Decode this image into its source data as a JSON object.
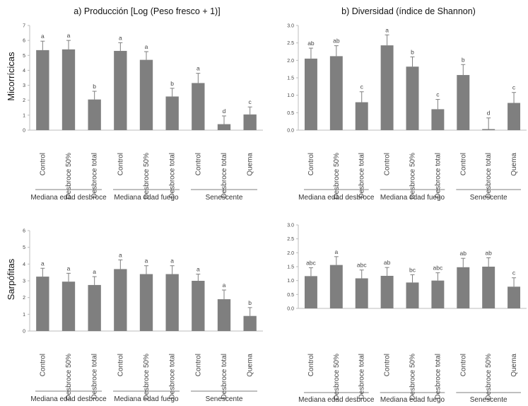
{
  "titles": {
    "a": "a) Producción [Log (Peso fresco + 1)]",
    "b": "b) Diversidad (índice de Shannon)"
  },
  "row_labels": [
    "Micorrícicas",
    "Sarpófitas"
  ],
  "chart_data": [
    {
      "type": "bar",
      "panel": "a) Producción [Log (Peso fresco + 1)]",
      "row": "Micorrícicas",
      "ylim": [
        0,
        7
      ],
      "yticks": [
        "0",
        "1",
        "2",
        "3",
        "4",
        "5",
        "6",
        "7"
      ],
      "groups": [
        {
          "name": "Mediana edad desbroce",
          "categories": [
            "Control",
            "Desbroce 50%",
            "Desbroce total"
          ],
          "values": [
            5.35,
            5.4,
            2.05
          ],
          "errors": [
            0.6,
            0.6,
            0.55
          ],
          "letters": [
            "a",
            "a",
            "b"
          ]
        },
        {
          "name": "Mediana edad fuego",
          "categories": [
            "Control",
            "Desbroce 50%",
            "Desbroce total"
          ],
          "values": [
            5.3,
            4.7,
            2.25
          ],
          "errors": [
            0.55,
            0.55,
            0.55
          ],
          "letters": [
            "a",
            "a",
            "b"
          ]
        },
        {
          "name": "Senescente",
          "categories": [
            "Control",
            "Desbroce total",
            "Quema"
          ],
          "values": [
            3.15,
            0.4,
            1.05
          ],
          "errors": [
            0.65,
            0.55,
            0.5
          ],
          "letters": [
            "a",
            "d",
            "c"
          ]
        }
      ]
    },
    {
      "type": "bar",
      "panel": "b) Diversidad (índice de Shannon)",
      "row": "Micorrícicas",
      "ylim": [
        0,
        3
      ],
      "yticks": [
        "0.0",
        "0.5",
        "1.0",
        "1.5",
        "2.0",
        "2.5",
        "3.0"
      ],
      "groups": [
        {
          "name": "Mediana edad desbroce",
          "categories": [
            "Control",
            "Desbroce 50%",
            "Desbroce total"
          ],
          "values": [
            2.05,
            2.12,
            0.8
          ],
          "errors": [
            0.3,
            0.3,
            0.3
          ],
          "letters": [
            "ab",
            "ab",
            "c"
          ]
        },
        {
          "name": "Mediana edad fuego",
          "categories": [
            "Control",
            "Desbroce 50%",
            "Desbroce total"
          ],
          "values": [
            2.43,
            1.82,
            0.6
          ],
          "errors": [
            0.3,
            0.28,
            0.28
          ],
          "letters": [
            "a",
            "b",
            "c"
          ]
        },
        {
          "name": "Senescente",
          "categories": [
            "Control",
            "Desbroce total",
            "Quema"
          ],
          "values": [
            1.58,
            0.03,
            0.78
          ],
          "errors": [
            0.3,
            0.32,
            0.3
          ],
          "letters": [
            "b",
            "d",
            "c"
          ]
        }
      ]
    },
    {
      "type": "bar",
      "panel": "a) Producción [Log (Peso fresco + 1)]",
      "row": "Sarpófitas",
      "ylim": [
        0,
        6
      ],
      "yticks": [
        "0",
        "1",
        "2",
        "3",
        "4",
        "5",
        "6"
      ],
      "groups": [
        {
          "name": "Mediana edad desbroce",
          "categories": [
            "Control",
            "Desbroce 50%",
            "Desbroce total"
          ],
          "values": [
            3.25,
            2.95,
            2.75
          ],
          "errors": [
            0.5,
            0.5,
            0.5
          ],
          "letters": [
            "a",
            "a",
            "a"
          ]
        },
        {
          "name": "Mediana edad fuego",
          "categories": [
            "Control",
            "Desbroce 50%",
            "Desbroce total"
          ],
          "values": [
            3.7,
            3.4,
            3.4
          ],
          "errors": [
            0.55,
            0.5,
            0.5
          ],
          "letters": [
            "a",
            "a",
            "a"
          ]
        },
        {
          "name": "Senescente",
          "categories": [
            "Control",
            "Desbroce total",
            "Quema"
          ],
          "values": [
            3.0,
            1.9,
            0.9
          ],
          "errors": [
            0.4,
            0.55,
            0.5
          ],
          "letters": [
            "a",
            "a",
            "b"
          ]
        }
      ]
    },
    {
      "type": "bar",
      "panel": "b) Diversidad (índice de Shannon)",
      "row": "Sarpófitas",
      "ylim": [
        0,
        3
      ],
      "yticks": [
        "0.0",
        "0.5",
        "1.0",
        "1.5",
        "2.0",
        "2.5",
        "3.0"
      ],
      "groups": [
        {
          "name": "Mediana edad desbroce",
          "categories": [
            "Control",
            "Desbroce 50%",
            "Desbroce total"
          ],
          "values": [
            1.16,
            1.56,
            1.08
          ],
          "errors": [
            0.3,
            0.3,
            0.3
          ],
          "letters": [
            "abc",
            "a",
            "abc"
          ]
        },
        {
          "name": "Mediana edad fuego",
          "categories": [
            "Control",
            "Desbroce 50%",
            "Desbroce total"
          ],
          "values": [
            1.17,
            0.93,
            1.0
          ],
          "errors": [
            0.3,
            0.28,
            0.28
          ],
          "letters": [
            "ab",
            "bc",
            "abc"
          ]
        },
        {
          "name": "Senescente",
          "categories": [
            "Control",
            "Desbroce 50%",
            "Quema"
          ],
          "values": [
            1.48,
            1.5,
            0.78
          ],
          "errors": [
            0.32,
            0.32,
            0.32
          ],
          "letters": [
            "ab",
            "ab",
            "c"
          ]
        }
      ]
    }
  ]
}
